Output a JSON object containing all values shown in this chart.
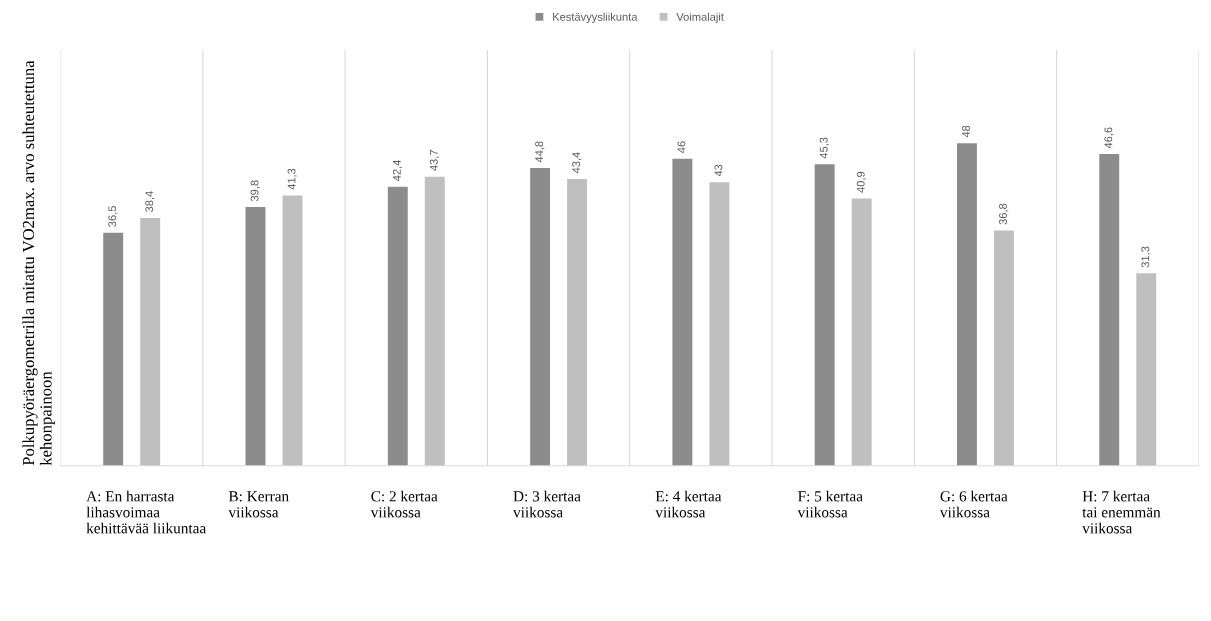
{
  "chart_data": {
    "type": "bar",
    "ylabel": "Polkupyöräergometrilla mitattu VO2max. arvo suhteutettuna kehonpainoon",
    "categories": [
      "A: En harrasta\nlihasvoimaa\nkehittävää liikuntaa",
      "B: Kerran\nviikossa",
      "C: 2 kertaa\nviikossa",
      "D: 3 kertaa\nviikossa",
      "E: 4 kertaa\nviikossa",
      "F: 5 kertaa\nviikossa",
      "G: 6 kertaa\nviikossa",
      "H: 7 kertaa\ntai enemmän\nviikossa"
    ],
    "series": [
      {
        "name": "Kestävyysliikunta",
        "color": "#8c8c8c",
        "values": [
          36.5,
          39.8,
          42.4,
          44.8,
          46,
          45.3,
          48,
          46.6
        ],
        "value_labels": [
          "36,5",
          "39,8",
          "42,4",
          "44,8",
          "46",
          "45,3",
          "48",
          "46,6"
        ]
      },
      {
        "name": "Voimalajit",
        "color": "#bfbfbf",
        "values": [
          38.4,
          41.3,
          43.7,
          43.4,
          43,
          40.9,
          36.8,
          31.3
        ],
        "value_labels": [
          "38,4",
          "41,3",
          "43,7",
          "43,4",
          "43",
          "40,9",
          "36,8",
          "31,3"
        ]
      }
    ],
    "ylim": [
      6.6,
      60
    ],
    "tick_labels": "x",
    "grid": "x",
    "legend": "top"
  }
}
